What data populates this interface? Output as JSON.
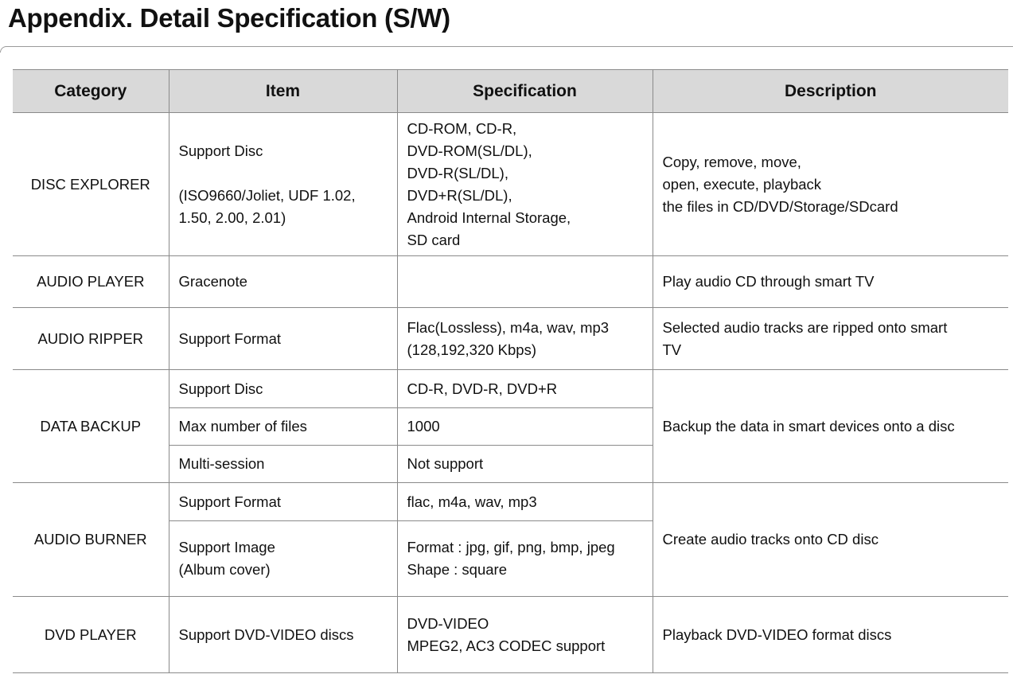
{
  "title": "Appendix. Detail Specification (S/W)",
  "table": {
    "headers": [
      "Category",
      "Item",
      "Specification",
      "Description"
    ],
    "rows": [
      {
        "category": "DISC EXPLORER",
        "rowspan": 1,
        "h": 180,
        "items": [
          {
            "item": [
              "Support Disc",
              "",
              "(ISO9660/Joliet, UDF 1.02,",
              "1.50, 2.00, 2.01)"
            ],
            "spec": [
              "CD-ROM, CD-R,",
              "DVD-ROM(SL/DL),",
              "DVD-R(SL/DL),",
              "DVD+R(SL/DL),",
              "Android Internal Storage,",
              "SD card"
            ]
          }
        ],
        "description": [
          "Copy, remove, move,",
          "open, execute, playback",
          "the files in CD/DVD/Storage/SDcard"
        ]
      },
      {
        "category": "AUDIO PLAYER",
        "h": 65,
        "items": [
          {
            "item": [
              "Gracenote"
            ],
            "spec": [
              ""
            ]
          }
        ],
        "description": [
          "Play audio CD through smart TV"
        ]
      },
      {
        "category": "AUDIO RIPPER",
        "h": 78,
        "items": [
          {
            "item": [
              "Support Format"
            ],
            "spec": [
              "Flac(Lossless), m4a, wav, mp3",
              "(128,192,320 Kbps)"
            ]
          }
        ],
        "description": [
          "Selected audio tracks are ripped onto smart",
          "TV"
        ]
      },
      {
        "category": "DATA BACKUP",
        "h": 47,
        "items": [
          {
            "item": [
              "Support Disc"
            ],
            "spec": [
              "CD-R, DVD-R, DVD+R"
            ]
          },
          {
            "item": [
              "Max number of files"
            ],
            "spec": [
              "1000"
            ]
          },
          {
            "item": [
              "Multi-session"
            ],
            "spec": [
              "Not support"
            ]
          }
        ],
        "description": [
          "Backup the data in smart devices onto a disc"
        ]
      },
      {
        "category": "AUDIO BURNER",
        "h": 48,
        "items": [
          {
            "item": [
              "Support Format"
            ],
            "spec": [
              "flac, m4a, wav, mp3"
            ]
          },
          {
            "item": [
              "Support Image",
              "(Album cover)"
            ],
            "spec": [
              "Format : jpg, gif, png, bmp, jpeg",
              "Shape : square"
            ]
          }
        ],
        "description": [
          "Create audio tracks onto CD disc"
        ]
      },
      {
        "category": "DVD PLAYER",
        "h": 96,
        "items": [
          {
            "item": [
              "Support DVD-VIDEO discs"
            ],
            "spec": [
              "DVD-VIDEO",
              "MPEG2, AC3 CODEC support"
            ]
          }
        ],
        "description": [
          "Playback DVD-VIDEO format discs"
        ]
      }
    ]
  }
}
